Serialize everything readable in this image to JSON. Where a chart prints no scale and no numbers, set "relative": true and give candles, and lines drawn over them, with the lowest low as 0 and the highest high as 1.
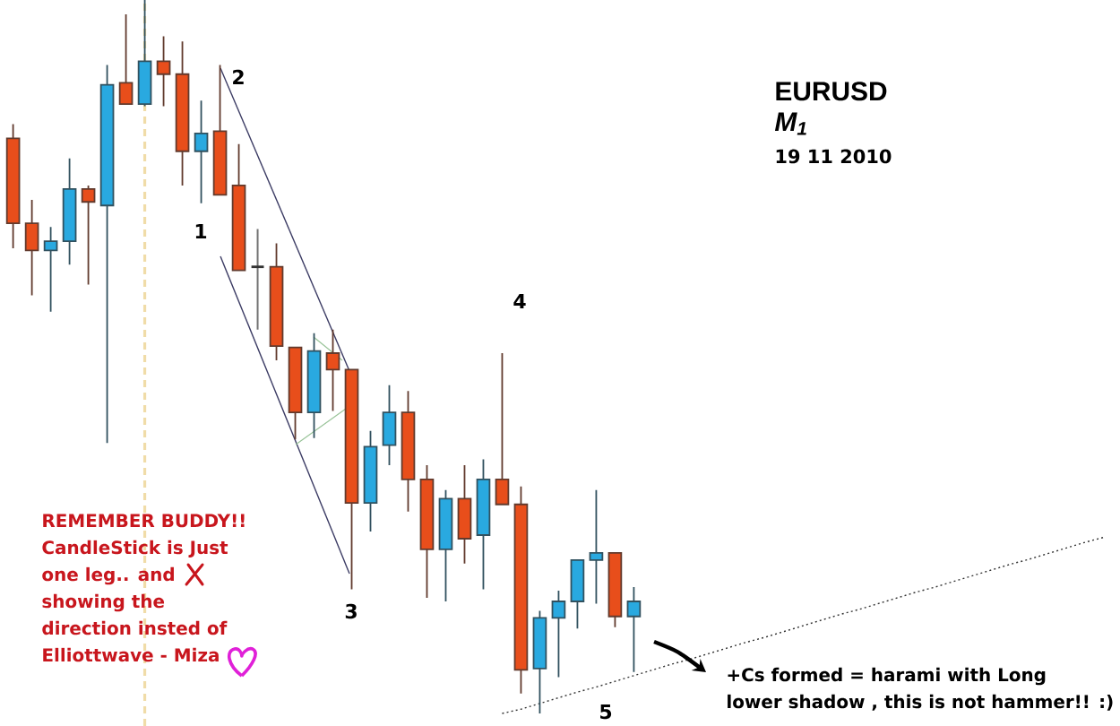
{
  "chart_data": {
    "type": "candlestick",
    "title": "EURUSD",
    "subtitle": "M$_{1}$",
    "annotations": [
      "REMEMBER BUDDY!!",
      "CandleStick is Just",
      "one leg.. and",
      "showing the",
      "direction insted of",
      "Elliottwave - Miza",
      "+Cs formed = harami with Long",
      "lower shadow , this is not hammer!! :)",
      "19 11 2010",
      "1",
      "2",
      "3",
      "4",
      "5"
    ],
    "relative": true,
    "categories": [
      null,
      null,
      null,
      null,
      null,
      null,
      null,
      null,
      null,
      null,
      null,
      null,
      null,
      null,
      null,
      null,
      null,
      null,
      null,
      null,
      null,
      null,
      null,
      null,
      null,
      null,
      null,
      null,
      null,
      null,
      null,
      null,
      null,
      null,
      null,
      null,
      null,
      null,
      null,
      null,
      null,
      null,
      null,
      null,
      null,
      null,
      null,
      null,
      null,
      null,
      null,
      null,
      null,
      null,
      null,
      null,
      null,
      null,
      null
    ],
    "ohlc": [
      [
        0.806,
        0.826,
        0.652,
        0.687
      ],
      [
        0.687,
        0.72,
        0.586,
        0.649
      ],
      [
        0.649,
        0.682,
        0.563,
        0.662
      ],
      [
        0.662,
        0.778,
        0.629,
        0.735
      ],
      [
        0.735,
        0.74,
        0.601,
        0.717
      ],
      [
        0.712,
        0.909,
        0.379,
        0.881
      ],
      [
        0.884,
        0.98,
        0.854,
        0.854
      ],
      [
        0.854,
        1.0,
        0.851,
        0.914
      ],
      [
        0.914,
        0.949,
        0.851,
        0.896
      ],
      [
        0.896,
        0.942,
        0.74,
        0.788
      ],
      [
        0.788,
        0.859,
        0.715,
        0.813
      ],
      [
        0.816,
        0.909,
        0.727,
        0.727
      ],
      [
        0.74,
        0.798,
        0.621,
        0.621
      ],
      [
        0.626,
        0.679,
        0.538,
        0.626
      ],
      [
        0.626,
        0.659,
        0.495,
        0.515
      ],
      [
        0.513,
        0.513,
        0.384,
        0.422
      ],
      [
        0.422,
        0.533,
        0.386,
        0.508
      ],
      [
        0.505,
        0.538,
        0.424,
        0.482
      ],
      [
        0.482,
        0.482,
        0.174,
        0.295
      ],
      [
        0.295,
        0.396,
        0.255,
        0.374
      ],
      [
        0.376,
        0.46,
        0.348,
        0.422
      ],
      [
        0.422,
        0.452,
        0.283,
        0.328
      ],
      [
        0.328,
        0.348,
        0.162,
        0.23
      ],
      [
        0.23,
        0.313,
        0.157,
        0.301
      ],
      [
        0.301,
        0.348,
        0.21,
        0.245
      ],
      [
        0.25,
        0.356,
        0.174,
        0.328
      ],
      [
        0.328,
        0.505,
        0.293,
        0.293
      ],
      [
        0.293,
        0.318,
        0.028,
        0.061
      ],
      [
        0.063,
        0.144,
        0.0,
        0.134
      ],
      [
        0.134,
        0.172,
        0.051,
        0.157
      ],
      [
        0.157,
        0.215,
        0.119,
        0.215
      ],
      [
        0.215,
        0.313,
        0.154,
        0.225
      ],
      [
        0.225,
        0.225,
        0.121,
        0.136
      ],
      [
        0.136,
        0.177,
        0.058,
        0.157
      ],
      null,
      null,
      null,
      null,
      null,
      null,
      null,
      null,
      null,
      null,
      null,
      null,
      null,
      null,
      null,
      null,
      null,
      null,
      null,
      null,
      null,
      null,
      null,
      null,
      null
    ],
    "colors": [
      "#e84e1b",
      "#e84e1b",
      "#29a9e0",
      "#29a9e0",
      "#e84e1b",
      "#29a9e0",
      "#e84e1b",
      "#29a9e0",
      "#e84e1b",
      "#e84e1b",
      "#29a9e0",
      "#e84e1b",
      "#e84e1b",
      "#333333",
      "#e84e1b",
      "#e84e1b",
      "#29a9e0",
      "#e84e1b",
      "#e84e1b",
      "#29a9e0",
      "#29a9e0",
      "#e84e1b",
      "#e84e1b",
      "#29a9e0",
      "#e84e1b",
      "#29a9e0",
      "#e84e1b",
      "#e84e1b",
      "#29a9e0",
      "#29a9e0",
      "#29a9e0",
      "#29a9e0",
      "#e84e1b",
      "#29a9e0",
      null,
      null,
      null,
      null,
      null,
      null,
      null,
      null,
      null,
      null,
      null,
      null,
      null,
      null,
      null,
      null,
      null,
      null,
      null,
      null,
      null,
      null,
      null,
      null,
      null
    ],
    "series": [
      {
        "type": "line",
        "color": "#333333",
        "line_style": "dotted",
        "values": [
          null,
          null,
          null,
          null,
          null,
          null,
          null,
          null,
          null,
          null,
          null,
          null,
          null,
          null,
          null,
          null,
          null,
          null,
          null,
          null,
          null,
          null,
          null,
          null,
          null,
          null,
          0.0,
          0.006,
          0.014,
          0.022,
          0.03,
          0.037,
          0.045,
          0.053,
          0.061,
          0.069,
          0.076,
          0.084,
          0.092,
          0.1,
          0.107,
          0.115,
          0.123,
          0.131,
          0.139,
          0.146,
          0.154,
          0.162,
          0.17,
          0.177,
          0.185,
          0.193,
          0.201,
          0.209,
          0.216,
          0.224,
          0.232,
          0.24,
          0.247
        ]
      }
    ]
  }
}
